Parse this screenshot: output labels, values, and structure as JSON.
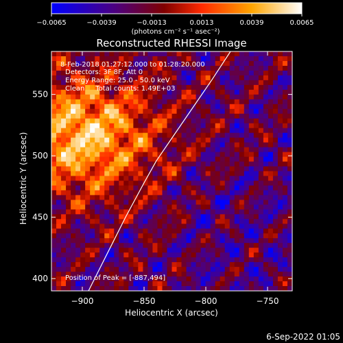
{
  "chart_data": {
    "type": "heatmap",
    "title": "Reconstructed RHESSI Image",
    "colorbar": {
      "min": -0.0065,
      "max": 0.0065,
      "ticks": [
        "−0.0065",
        "−0.0039",
        "−0.0013",
        "0.0013",
        "0.0039",
        "0.0065"
      ],
      "tick_values": [
        -0.0065,
        -0.0039,
        -0.0013,
        0.0013,
        0.0039,
        0.0065
      ],
      "units_label": "(photons cm⁻² s⁻¹ asec⁻²)",
      "colors": [
        "#0000ff",
        "#4b0082",
        "#800000",
        "#ff2a00",
        "#ffa500",
        "#ffffff"
      ]
    },
    "xlabel": "Heliocentric X (arcsec)",
    "ylabel": "Heliocentric Y (arcsec)",
    "xlim": [
      -925,
      -730
    ],
    "ylim": [
      390,
      585
    ],
    "xticks": [
      -900,
      -850,
      -800,
      -750
    ],
    "xtick_labels": [
      "−900",
      "−850",
      "−800",
      "−750"
    ],
    "yticks": [
      400,
      450,
      500,
      550
    ],
    "ytick_labels": [
      "400",
      "450",
      "500",
      "550"
    ],
    "limb_curve": {
      "x": [
        -895,
        -880,
        -865,
        -850,
        -840,
        -825,
        -810,
        -795,
        -780
      ],
      "y": [
        390,
        420,
        450,
        478,
        496,
        518,
        540,
        562,
        585
      ]
    },
    "annotations": [
      "8-Feb-2018 01:27:12.000 to 01:28:20.000",
      "Detectors: 3F 8F, Att 0",
      "Energy Range: 25.0 - 50.0 keV",
      "Clean     Total counts: 1.49E+03"
    ],
    "peak_label": "Position of Peak = [-887,494]",
    "peak": [
      -887,
      494
    ]
  },
  "footer": {
    "date": "6-Sep-2022 01:05"
  }
}
